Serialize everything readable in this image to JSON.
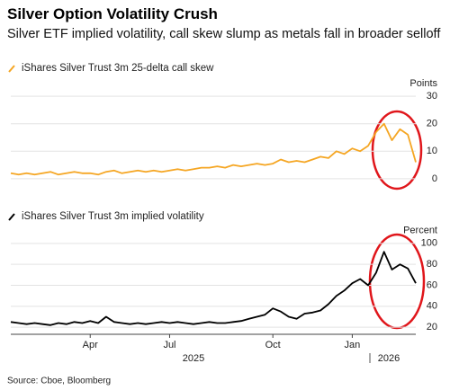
{
  "header": {
    "title": "Silver Option Volatility Crush",
    "subtitle": "Silver ETF implied volatility, call skew slump as metals fall in broader selloff"
  },
  "source": "Source: Cboe, Bloomberg",
  "chart_data": [
    {
      "type": "line",
      "y_axis_label": "Points",
      "ylim": [
        -2,
        32
      ],
      "yticks": [
        0,
        10,
        20,
        30
      ],
      "grid": true,
      "series": [
        {
          "name": "iShares Silver Trust 3m 25-delta call skew",
          "color": "#f5a623",
          "values": [
            2,
            1.5,
            2,
            1.5,
            2,
            2.5,
            1.5,
            2,
            2.5,
            2,
            2,
            1.5,
            2.5,
            3,
            2,
            2.5,
            3,
            2.5,
            3,
            2.5,
            3,
            3.5,
            3,
            3.5,
            4,
            4,
            4.5,
            4,
            5,
            4.5,
            5,
            5.5,
            5,
            5.5,
            7,
            6,
            6.5,
            6,
            7,
            8,
            7.5,
            10,
            9,
            11,
            10,
            12,
            17,
            20,
            14,
            18,
            16,
            6
          ]
        }
      ]
    },
    {
      "type": "line",
      "y_axis_label": "Percent",
      "ylim": [
        15,
        105
      ],
      "yticks": [
        20,
        40,
        60,
        80,
        100
      ],
      "grid": true,
      "categories": [
        null,
        null,
        null,
        null,
        null,
        null,
        null,
        null,
        null,
        null,
        "Apr",
        null,
        null,
        null,
        null,
        null,
        null,
        null,
        null,
        null,
        "Jul",
        null,
        null,
        null,
        null,
        null,
        null,
        null,
        null,
        null,
        null,
        null,
        null,
        "Oct",
        null,
        null,
        null,
        null,
        null,
        null,
        null,
        null,
        null,
        "Jan",
        null,
        null,
        null,
        null,
        null,
        null,
        null,
        null
      ],
      "year_labels": [
        "2025",
        "2026"
      ],
      "series": [
        {
          "name": "iShares Silver Trust 3m implied volatility",
          "color": "#000000",
          "values": [
            25,
            24,
            23,
            24,
            23,
            22,
            24,
            23,
            25,
            24,
            26,
            24,
            30,
            25,
            24,
            23,
            24,
            23,
            24,
            25,
            24,
            25,
            24,
            23,
            24,
            25,
            24,
            24,
            25,
            26,
            28,
            30,
            32,
            38,
            35,
            30,
            28,
            33,
            34,
            36,
            42,
            50,
            55,
            62,
            66,
            60,
            72,
            92,
            75,
            80,
            76,
            62
          ]
        }
      ]
    }
  ]
}
